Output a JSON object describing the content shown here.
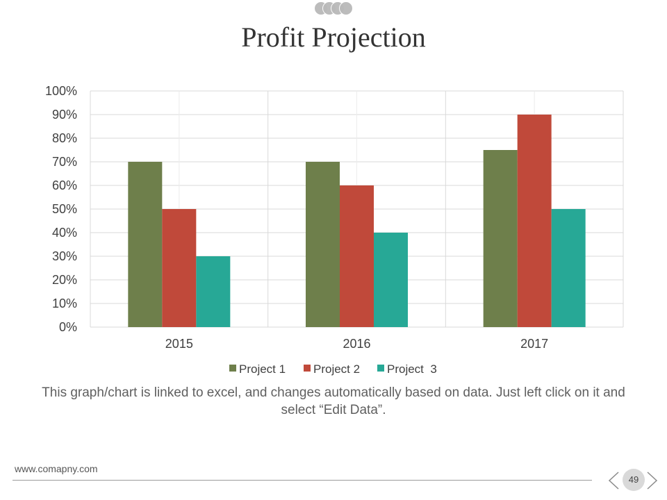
{
  "slide": {
    "title": "Profit Projection",
    "caption": "This graph/chart is linked to excel, and changes automatically based on data. Just left click on it and select “Edit Data”.",
    "website": "www.comapny.com",
    "page_number": "49"
  },
  "chart_data": {
    "type": "bar",
    "title": "",
    "xlabel": "",
    "ylabel": "",
    "categories": [
      "2015",
      "2016",
      "2017"
    ],
    "series": [
      {
        "name": "Project 1",
        "values": [
          70,
          70,
          75
        ],
        "color": "#6e7f4b"
      },
      {
        "name": "Project 2",
        "values": [
          50,
          60,
          90
        ],
        "color": "#c0493a"
      },
      {
        "name": "Project  3",
        "values": [
          30,
          40,
          50
        ],
        "color": "#27a896"
      }
    ],
    "ylim": [
      0,
      100
    ],
    "y_ticks": [
      0,
      10,
      20,
      30,
      40,
      50,
      60,
      70,
      80,
      90,
      100
    ],
    "y_tick_labels": [
      "0%",
      "10%",
      "20%",
      "30%",
      "40%",
      "50%",
      "60%",
      "70%",
      "80%",
      "90%",
      "100%"
    ],
    "grid": true,
    "legend_position": "bottom"
  }
}
